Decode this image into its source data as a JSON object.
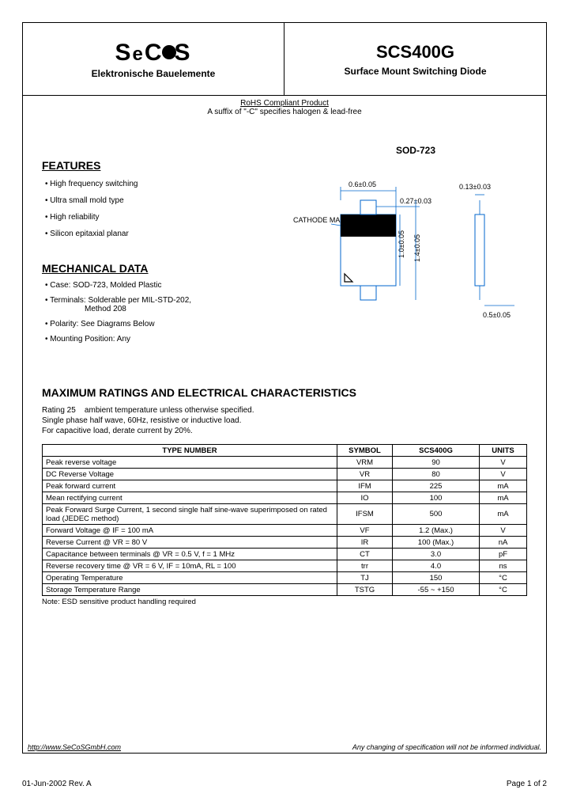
{
  "header": {
    "logo_text": "SeCoS",
    "company_subtitle": "Elektronische Bauelemente",
    "part_number": "SCS400G",
    "part_type": "Surface Mount Switching Diode"
  },
  "rohs": {
    "title": "RoHS Compliant Product",
    "note": "A suffix of \"-C\" specifies halogen & lead-free"
  },
  "package": {
    "label": "SOD-723",
    "cathode_label": "CATHODE MARK",
    "dimensions": {
      "width": "0.6±0.05",
      "lead_w": "0.27±0.03",
      "thickness": "0.13±0.03",
      "body_h": "1.0±0.05",
      "total_h": "1.4±0.05",
      "standoff": "0.5±0.05"
    }
  },
  "features": {
    "title": "FEATURES",
    "items": [
      "High frequency switching",
      "Ultra small mold type",
      "High reliability",
      "Silicon epitaxial planar"
    ]
  },
  "mechanical": {
    "title": "MECHANICAL DATA",
    "items": [
      "Case: SOD-723, Molded Plastic",
      "Terminals: Solderable per MIL-STD-202, Method 208",
      "Polarity: See Diagrams Below",
      "Mounting Position: Any"
    ]
  },
  "ratings": {
    "title": "MAXIMUM RATINGS AND ELECTRICAL CHARACTERISTICS",
    "note": "Rating 25°C ambient temperature unless otherwise specified.\nSingle phase half wave, 60Hz, resistive or inductive load.\nFor capacitive load, derate current by 20%.",
    "columns": [
      "TYPE NUMBER",
      "SYMBOL",
      "SCS400G",
      "UNITS"
    ],
    "rows": [
      [
        "Peak reverse voltage",
        "VRM",
        "90",
        "V"
      ],
      [
        "DC Reverse Voltage",
        "VR",
        "80",
        "V"
      ],
      [
        "Peak forward current",
        "IFM",
        "225",
        "mA"
      ],
      [
        "Mean rectifying current",
        "IO",
        "100",
        "mA"
      ],
      [
        "Peak Forward Surge Current, 1 second single half sine-wave superimposed on rated load (JEDEC method)",
        "IFSM",
        "500",
        "mA"
      ],
      [
        "Forward Voltage @ IF = 100 mA",
        "VF",
        "1.2 (Max.)",
        "V"
      ],
      [
        "Reverse Current @ VR = 80 V",
        "IR",
        "100 (Max.)",
        "nA"
      ],
      [
        "Capacitance between terminals @ VR = 0.5 V, f = 1 MHz",
        "CT",
        "3.0",
        "pF"
      ],
      [
        "Reverse recovery time @ VR = 6 V, IF = 10mA, RL = 100",
        "trr",
        "4.0",
        "ns"
      ],
      [
        "Operating Temperature",
        "TJ",
        "150",
        "°C"
      ],
      [
        "Storage Temperature Range",
        "TSTG",
        "-55 ~ +150",
        "°C"
      ]
    ],
    "table_note": "Note: ESD sensitive product handling required"
  },
  "footer": {
    "url": "http://www.SeCoSGmbH.com",
    "disclaimer": "Any changing of specification will not be informed individual.",
    "date_rev": "01-Jun-2002 Rev. A",
    "page": "Page 1 of 2"
  }
}
